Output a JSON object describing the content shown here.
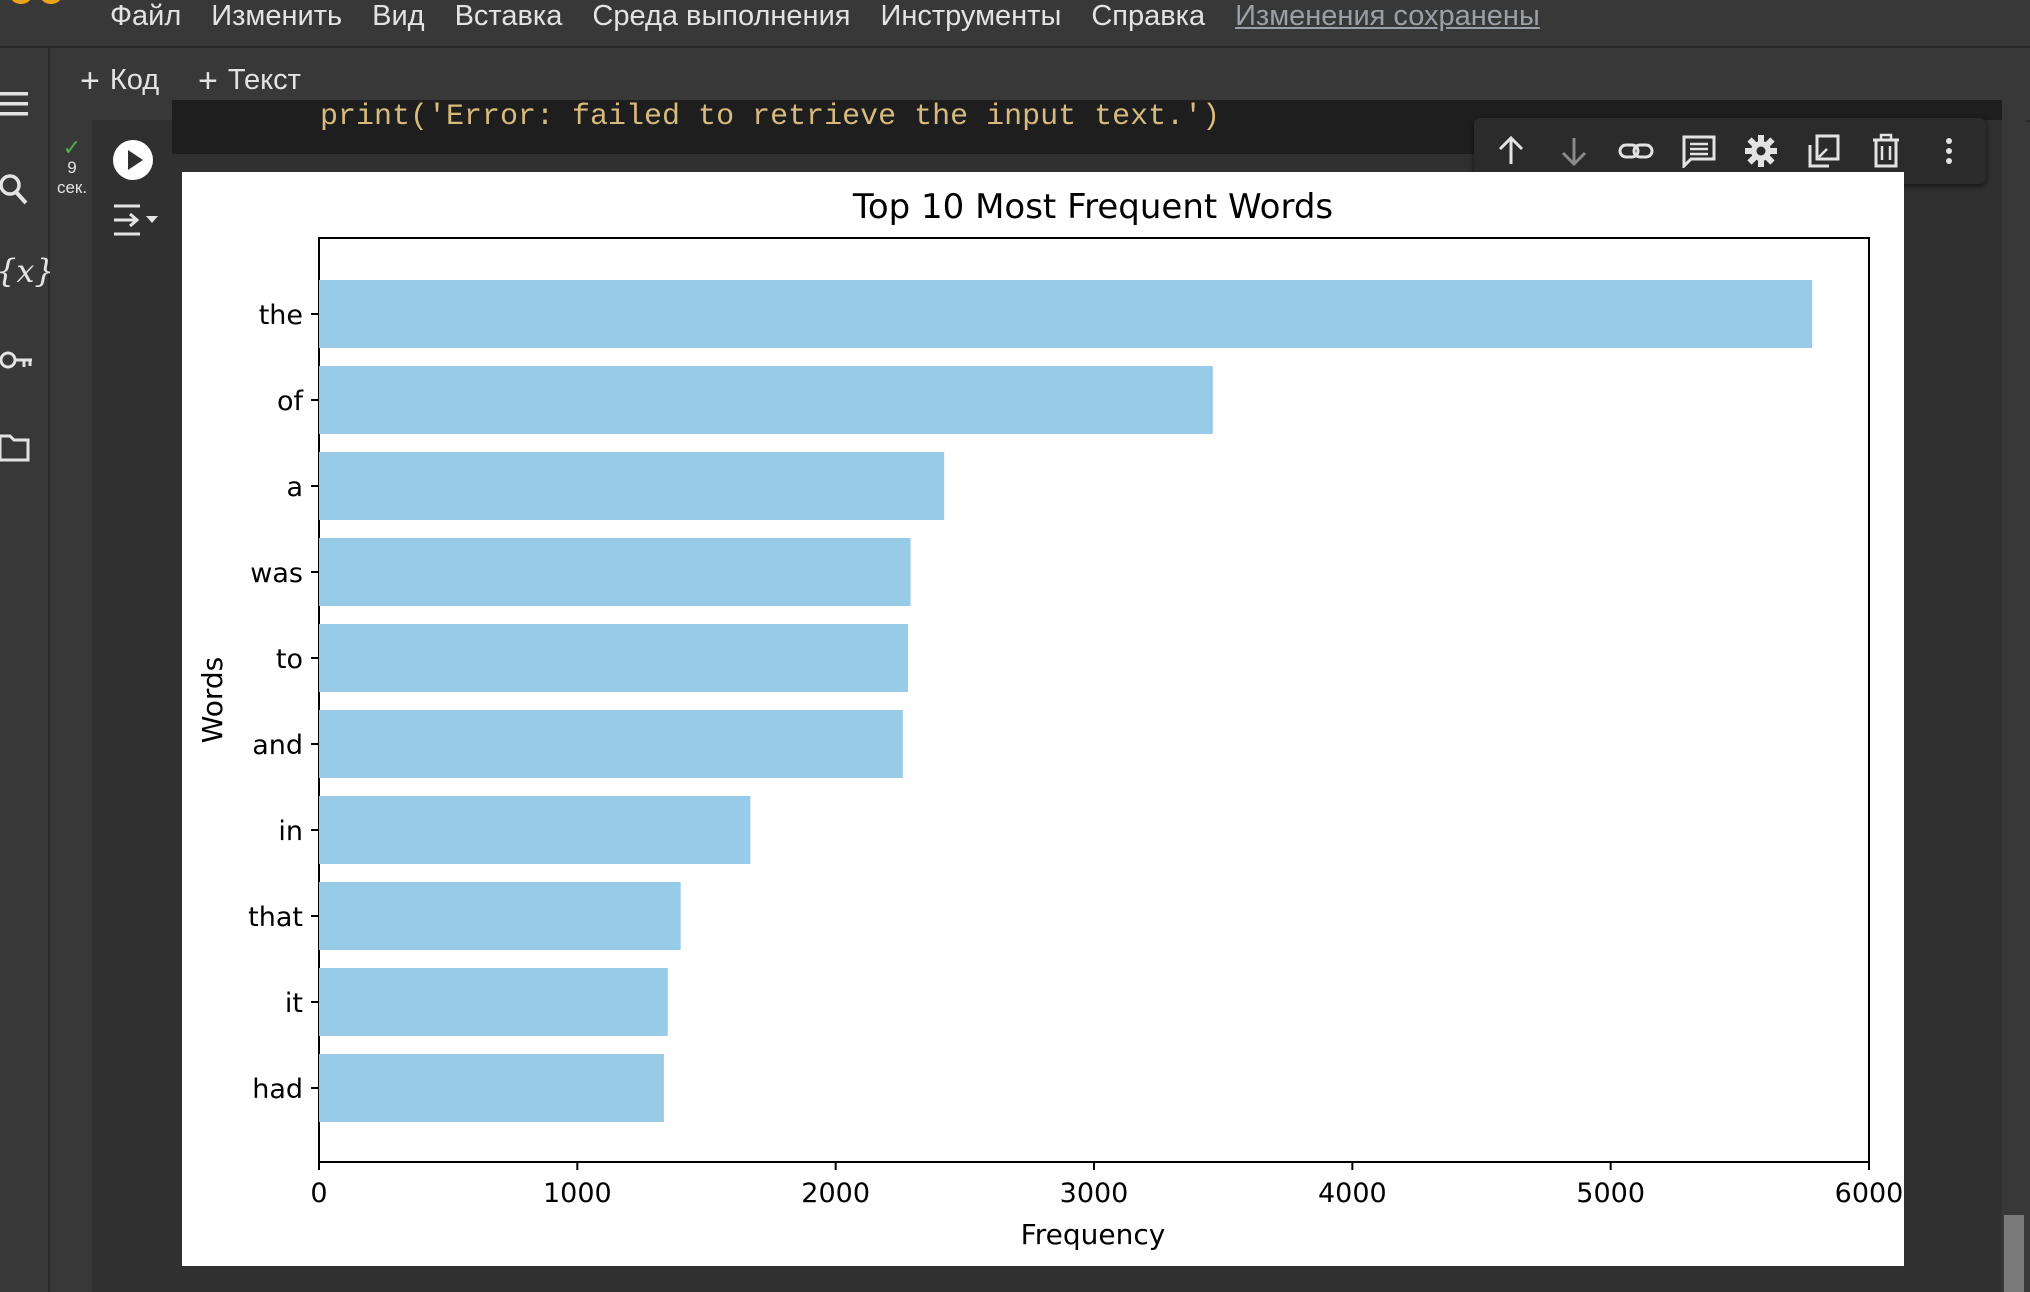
{
  "menu": {
    "items": [
      "Файл",
      "Изменить",
      "Вид",
      "Вставка",
      "Среда выполнения",
      "Инструменты",
      "Справка"
    ],
    "saved_status": "Изменения сохранены"
  },
  "toolbar": {
    "add_code_label": "Код",
    "add_text_label": "Текст"
  },
  "left_rail": {
    "icons": [
      "menu-icon",
      "search-icon",
      "variables-icon",
      "key-icon",
      "folder-icon"
    ],
    "variables_glyph": "{x}"
  },
  "cell": {
    "exec_count": "9",
    "exec_unit": "сек.",
    "code_line": "print('Error: failed to retrieve the input text.')"
  },
  "cell_toolbar": {
    "icons": [
      "move-up-icon",
      "move-down-icon",
      "link-icon",
      "comment-icon",
      "settings-icon",
      "mirror-cell-icon",
      "delete-icon",
      "more-icon"
    ]
  },
  "chart_data": {
    "type": "bar",
    "orientation": "horizontal",
    "title": "Top 10 Most Frequent Words",
    "xlabel": "Frequency",
    "ylabel": "Words",
    "categories": [
      "the",
      "of",
      "a",
      "was",
      "to",
      "and",
      "in",
      "that",
      "it",
      "had"
    ],
    "values": [
      5780,
      3460,
      2420,
      2290,
      2280,
      2260,
      1670,
      1400,
      1350,
      1335
    ],
    "xlim": [
      0,
      6000
    ],
    "xticks": [
      "0",
      "1000",
      "2000",
      "3000",
      "4000",
      "5000",
      "6000"
    ],
    "bar_color": "#97cbe8",
    "grid": false
  },
  "colors": {
    "background": "#383838",
    "cell_background": "#303030",
    "accent_check": "#4caf50"
  }
}
